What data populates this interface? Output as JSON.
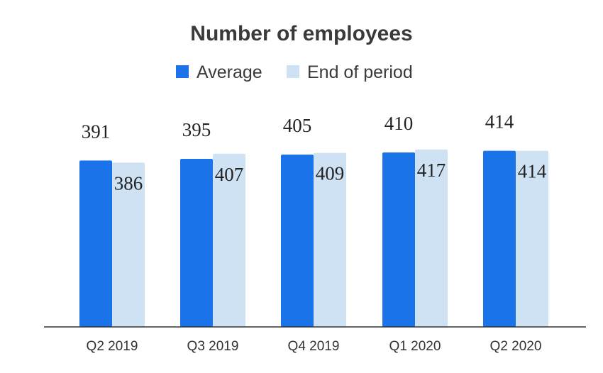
{
  "chart_data": {
    "type": "bar",
    "title": "Number of employees",
    "categories": [
      "Q2 2019",
      "Q3 2019",
      "Q4 2019",
      "Q1 2020",
      "Q2 2020"
    ],
    "series": [
      {
        "name": "Average",
        "values": [
          391,
          395,
          405,
          410,
          414
        ],
        "color": "#1a73e8"
      },
      {
        "name": "End of period",
        "values": [
          386,
          407,
          409,
          417,
          414
        ],
        "color": "#cfe2f3"
      }
    ],
    "ylim": [
      0,
      490
    ],
    "grid": false,
    "legend": "top",
    "xlabel": "",
    "ylabel": ""
  }
}
